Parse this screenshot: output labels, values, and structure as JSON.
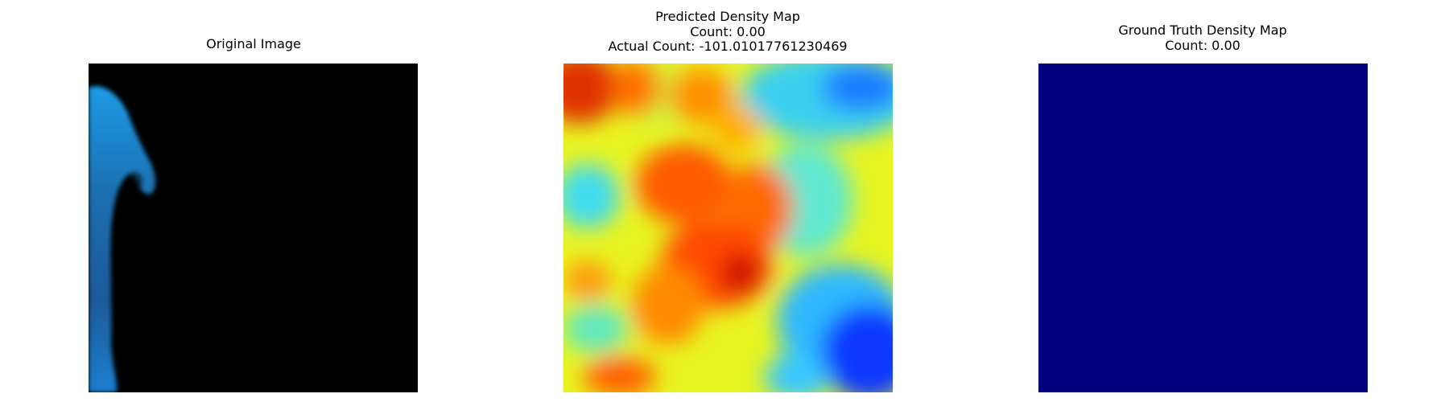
{
  "figure": {
    "panels": [
      {
        "id": "original",
        "title_lines": [
          "Original Image"
        ],
        "content": "photo: dark background with blue silhouette at left edge"
      },
      {
        "id": "predicted",
        "title_lines": [
          "Predicted Density Map",
          "Count: 0.00",
          "Actual Count: -101.01017761230469"
        ],
        "content": "jet colormap heatmap"
      },
      {
        "id": "ground-truth",
        "title_lines": [
          "Ground Truth Density Map",
          "Count: 0.00"
        ],
        "content": "uniform dark blue"
      }
    ],
    "colors": {
      "background": "#ffffff",
      "photo_background": "#000000",
      "silhouette_blue": "#1e88d8",
      "ground_truth_fill": "#00007f"
    },
    "colormap": "jet"
  }
}
